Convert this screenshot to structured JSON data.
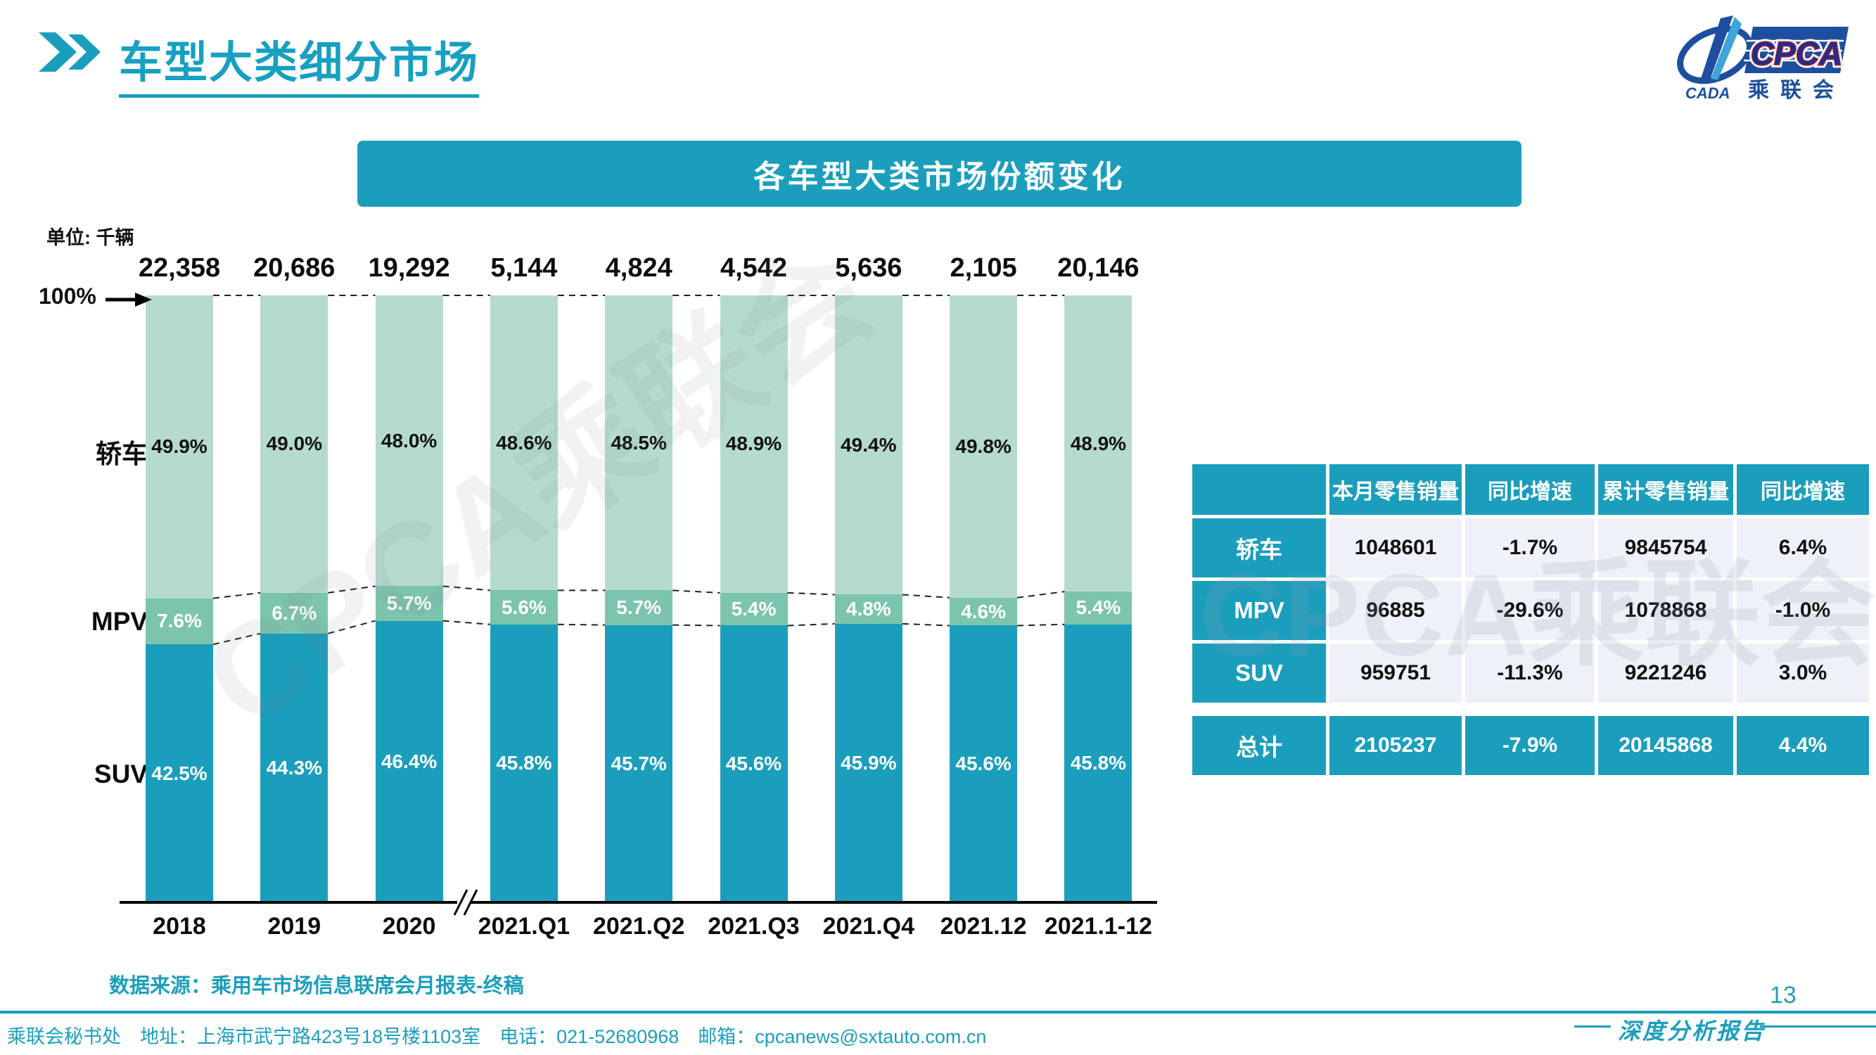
{
  "header": {
    "title": "车型大类细分市场"
  },
  "logo": {
    "cpca": "CPCA",
    "cada": "CADA",
    "sub": "乘联会"
  },
  "chart_title": "各车型大类市场份额变化",
  "unit_label": "单位: 千辆",
  "watermark": "CPCA乘联会",
  "chart_data": {
    "type": "bar",
    "stacked": true,
    "title": "各车型大类市场份额变化",
    "unit": "千辆",
    "y_top_label": "100%",
    "ylim": [
      0,
      100
    ],
    "grid": false,
    "axis_break_after_index": 2,
    "categories": [
      "2018",
      "2019",
      "2020",
      "2021.Q1",
      "2021.Q2",
      "2021.Q3",
      "2021.Q4",
      "2021.12",
      "2021.1-12"
    ],
    "totals": [
      "22,358",
      "20,686",
      "19,292",
      "5,144",
      "4,824",
      "4,542",
      "5,636",
      "2,105",
      "20,146"
    ],
    "series": [
      {
        "key": "sedan",
        "name": "轿车",
        "color": "#b5dbce",
        "text_color": "#111111",
        "values": [
          49.9,
          49.0,
          48.0,
          48.6,
          48.5,
          48.9,
          49.4,
          49.8,
          48.9
        ]
      },
      {
        "key": "mpv",
        "name": "MPV",
        "color": "#7cc4ad",
        "text_color": "#ffffff",
        "values": [
          7.6,
          6.7,
          5.7,
          5.6,
          5.7,
          5.4,
          4.8,
          4.6,
          5.4
        ]
      },
      {
        "key": "suv",
        "name": "SUV",
        "color": "#1b9ebc",
        "text_color": "#ffffff",
        "values": [
          42.5,
          44.3,
          46.4,
          45.8,
          45.7,
          45.6,
          45.9,
          45.6,
          45.8
        ]
      }
    ]
  },
  "table": {
    "headers": [
      "",
      "本月零售销量",
      "同比增速",
      "累计零售销量",
      "同比增速"
    ],
    "rows": [
      {
        "label": "轿车",
        "cells": [
          "1048601",
          "-1.7%",
          "9845754",
          "6.4%"
        ],
        "total": false
      },
      {
        "label": "MPV",
        "cells": [
          "96885",
          "-29.6%",
          "1078868",
          "-1.0%"
        ],
        "total": false
      },
      {
        "label": "SUV",
        "cells": [
          "959751",
          "-11.3%",
          "9221246",
          "3.0%"
        ],
        "total": false
      },
      {
        "label": "总计",
        "cells": [
          "2105237",
          "-7.9%",
          "20145868",
          "4.4%"
        ],
        "total": true
      }
    ]
  },
  "source_note": "数据来源：乘用车市场信息联席会月报表-终稿",
  "footer": {
    "text": "乘联会秘书处　地址：上海市武宁路423号18号楼1103室　电话：021-52680968　邮箱：cpcanews@sxtauto.com.cn",
    "page_number": "13",
    "report_label": "深度分析报告"
  },
  "colors": {
    "accent_teal": "#1b9ebc",
    "mpv_green": "#7cc4ad",
    "sedan_green": "#b5dbce",
    "table_cell_bg": "#eef1f8",
    "logo_navy": "#1d4f9e",
    "logo_red": "#d7262c"
  }
}
